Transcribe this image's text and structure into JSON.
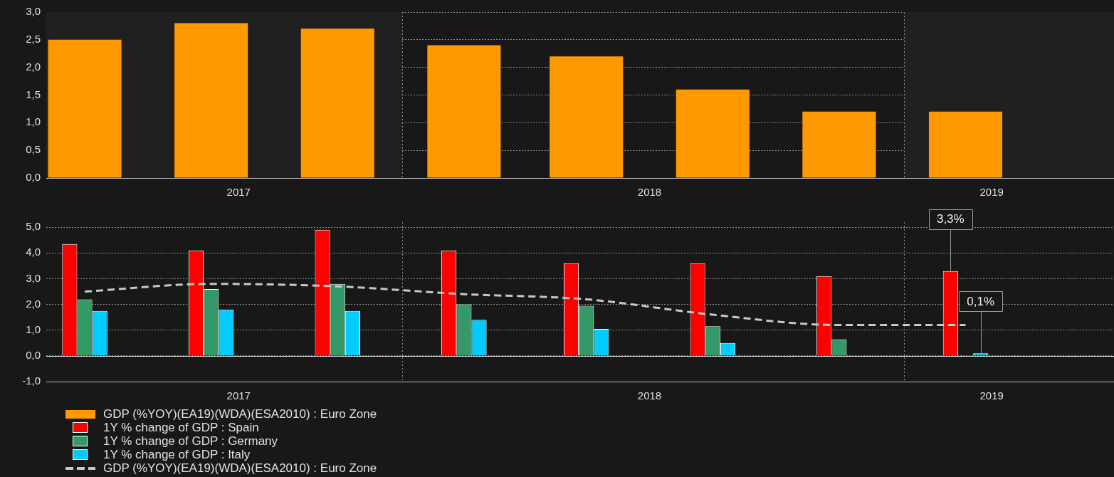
{
  "chart_data": [
    {
      "type": "bar",
      "x": [
        "2017-05-15",
        "2017-08-15",
        "2017-11-15",
        "2018-02-15",
        "2018-05-15",
        "2018-08-15",
        "2018-11-15",
        "2019-02-15"
      ],
      "series": [
        {
          "name": "GDP (%YOY)(EA19)(WDA)(ESA2010) : Euro Zone",
          "color": "#ff9900",
          "values": [
            2.5,
            2.8,
            2.7,
            2.4,
            2.2,
            1.6,
            1.2,
            1.2
          ]
        }
      ],
      "xlim": [
        "2017-04-17",
        "2019-06-03"
      ],
      "xticks": [
        {
          "value": "2017-09-04",
          "label": "2017"
        },
        {
          "value": "2018-06-30",
          "label": "2018"
        },
        {
          "value": "2019-03-06",
          "label": "2019"
        }
      ],
      "ylim": [
        0,
        3
      ],
      "yticks": [
        {
          "value": 0,
          "label": "0,0"
        },
        {
          "value": 0.5,
          "label": "0,5"
        },
        {
          "value": 1,
          "label": "1,0"
        },
        {
          "value": 1.5,
          "label": "1,5"
        },
        {
          "value": 2,
          "label": "2,0"
        },
        {
          "value": 2.5,
          "label": "2,5"
        },
        {
          "value": 3,
          "label": "3,0"
        }
      ],
      "bands": [
        {
          "axis": "x",
          "from": "2017-04-17",
          "to": "2018-01-01",
          "color": "#202020"
        },
        {
          "axis": "x",
          "from": "2019-01-01",
          "to": "2019-06-03",
          "color": "#202020"
        }
      ],
      "ref_lines": [
        {
          "axis": "x",
          "value": "2018-01-01",
          "color": "#8c8c8c",
          "line_style": "dotted"
        },
        {
          "axis": "x",
          "value": "2019-01-01",
          "color": "#8c8c8c",
          "line_style": "dotted"
        }
      ],
      "grid": "y",
      "legend": "bottom"
    },
    {
      "type": "bar",
      "x": [
        "2017-05-15",
        "2017-08-15",
        "2017-11-15",
        "2018-02-15",
        "2018-05-15",
        "2018-08-15",
        "2018-11-15",
        "2019-02-15"
      ],
      "series": [
        {
          "name": "1Y % change of GDP : Spain",
          "color": "#ff0000",
          "values": [
            4.35,
            4.1,
            4.9,
            4.1,
            3.6,
            3.6,
            3.1,
            3.3
          ],
          "value_labels": [
            null,
            null,
            null,
            null,
            null,
            null,
            null,
            "3,3%"
          ]
        },
        {
          "name": "1Y % change of GDP : Germany",
          "color": "#339966",
          "values": [
            2.2,
            2.6,
            2.8,
            2.0,
            1.95,
            1.15,
            0.65,
            null
          ]
        },
        {
          "name": "1Y % change of GDP : Italy",
          "color": "#00ccff",
          "values": [
            1.75,
            1.8,
            1.75,
            1.4,
            1.05,
            0.5,
            0,
            0.1
          ],
          "value_labels": [
            null,
            null,
            null,
            null,
            null,
            null,
            null,
            "0,1%"
          ]
        },
        {
          "name": "GDP (%YOY)(EA19)(WDA)(ESA2010) : Euro Zone",
          "type": "line",
          "color": "#c8c8c8",
          "line_style": "dashed",
          "marker": "none",
          "values": [
            2.5,
            2.8,
            2.7,
            2.4,
            2.2,
            1.6,
            1.2,
            1.2
          ]
        }
      ],
      "xlim": [
        "2017-04-17",
        "2019-06-03"
      ],
      "xticks": [
        {
          "value": "2017-09-04",
          "label": "2017"
        },
        {
          "value": "2018-06-30",
          "label": "2018"
        },
        {
          "value": "2019-03-06",
          "label": "2019"
        }
      ],
      "ylim": [
        -1,
        5.2
      ],
      "yticks": [
        {
          "value": -1,
          "label": "-1,0"
        },
        {
          "value": 0,
          "label": "0,0"
        },
        {
          "value": 1,
          "label": "1,0"
        },
        {
          "value": 2,
          "label": "2,0"
        },
        {
          "value": 3,
          "label": "3,0"
        },
        {
          "value": 4,
          "label": "4,0"
        },
        {
          "value": 5,
          "label": "5,0"
        }
      ],
      "ref_lines": [
        {
          "axis": "x",
          "value": "2018-01-01",
          "color": "#8c8c8c",
          "line_style": "dotted"
        },
        {
          "axis": "x",
          "value": "2019-01-01",
          "color": "#8c8c8c",
          "line_style": "dotted"
        },
        {
          "axis": "y",
          "value": 0,
          "color": "#e0e0e0",
          "line_style": "solid"
        }
      ],
      "grid": "y",
      "legend": "bottom"
    }
  ]
}
